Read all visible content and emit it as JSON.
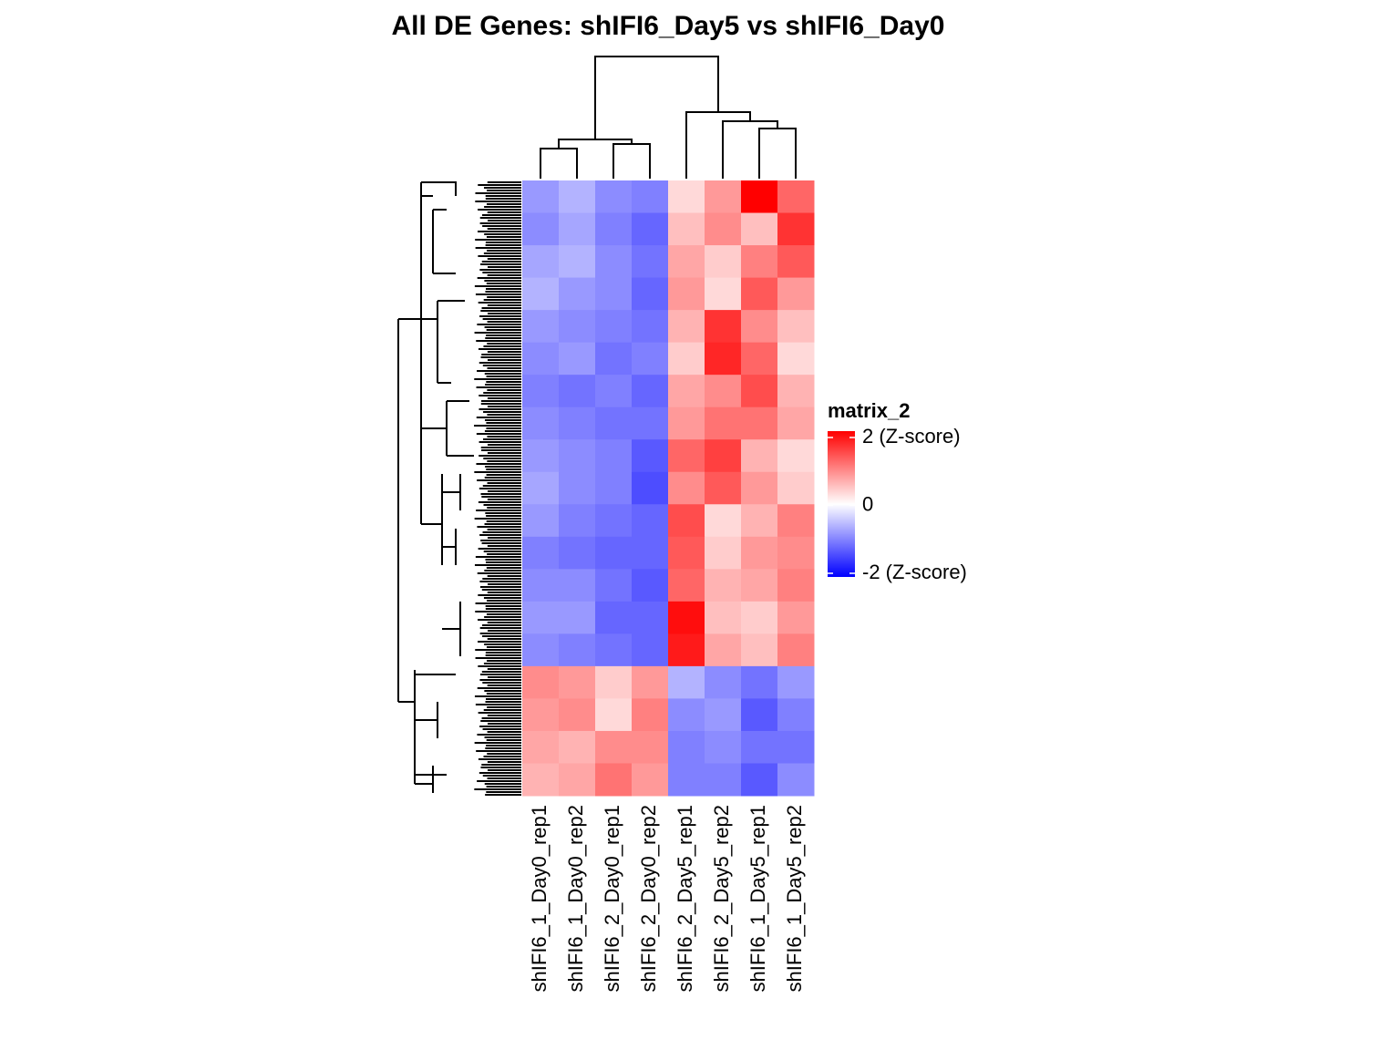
{
  "chart_data": {
    "type": "heatmap",
    "title": "All DE Genes: shIFI6_Day5  vs  shIFI6_Day0",
    "columns": [
      "shIFI6_1_Day0_rep1",
      "shIFI6_1_Day0_rep2",
      "shIFI6_2_Day0_rep1",
      "shIFI6_2_Day0_rep2",
      "shIFI6_2_Day5_rep1",
      "shIFI6_2_Day5_rep2",
      "shIFI6_1_Day5_rep1",
      "shIFI6_1_Day5_rep2"
    ],
    "values": [
      [
        -0.8,
        -0.6,
        -0.9,
        -1.0,
        0.3,
        0.8,
        2.0,
        1.2
      ],
      [
        -0.9,
        -0.7,
        -1.0,
        -1.2,
        0.5,
        0.9,
        0.5,
        1.6
      ],
      [
        -0.7,
        -0.6,
        -0.9,
        -1.1,
        0.7,
        0.4,
        1.0,
        1.3
      ],
      [
        -0.6,
        -0.8,
        -0.9,
        -1.2,
        0.8,
        0.3,
        1.3,
        0.8
      ],
      [
        -0.8,
        -0.9,
        -1.0,
        -1.1,
        0.6,
        1.6,
        0.9,
        0.5
      ],
      [
        -0.9,
        -0.8,
        -1.1,
        -1.0,
        0.4,
        1.7,
        1.2,
        0.3
      ],
      [
        -1.0,
        -1.1,
        -1.0,
        -1.2,
        0.7,
        0.9,
        1.4,
        0.6
      ],
      [
        -0.9,
        -1.0,
        -1.1,
        -1.1,
        0.8,
        1.1,
        1.1,
        0.7
      ],
      [
        -0.8,
        -0.9,
        -1.0,
        -1.3,
        1.2,
        1.5,
        0.6,
        0.3
      ],
      [
        -0.7,
        -0.9,
        -1.0,
        -1.4,
        0.9,
        1.3,
        0.8,
        0.4
      ],
      [
        -0.8,
        -1.0,
        -1.1,
        -1.2,
        1.4,
        0.3,
        0.6,
        1.0
      ],
      [
        -1.0,
        -1.1,
        -1.2,
        -1.2,
        1.3,
        0.4,
        0.8,
        0.9
      ],
      [
        -0.9,
        -0.9,
        -1.1,
        -1.3,
        1.2,
        0.6,
        0.7,
        1.0
      ],
      [
        -0.8,
        -0.8,
        -1.2,
        -1.2,
        1.9,
        0.5,
        0.4,
        0.8
      ],
      [
        -0.9,
        -1.0,
        -1.1,
        -1.2,
        1.8,
        0.7,
        0.5,
        1.0
      ],
      [
        0.9,
        0.8,
        0.4,
        0.8,
        -0.6,
        -0.9,
        -1.1,
        -0.8
      ],
      [
        0.8,
        0.9,
        0.3,
        1.0,
        -0.9,
        -0.8,
        -1.3,
        -1.0
      ],
      [
        0.7,
        0.6,
        0.9,
        0.9,
        -1.0,
        -0.9,
        -1.1,
        -1.1
      ],
      [
        0.6,
        0.7,
        1.1,
        0.8,
        -1.0,
        -1.0,
        -1.3,
        -0.9
      ]
    ],
    "legend": {
      "title": "matrix_2",
      "ticks": [
        {
          "value": 2,
          "label": "2 (Z-score)"
        },
        0,
        {
          "value": -2,
          "label": "-2 (Z-score)"
        }
      ]
    },
    "clim": [
      -2,
      2
    ],
    "colors": {
      "low": "#0000ff",
      "mid": "#ffffff",
      "high": "#ff0000"
    }
  }
}
